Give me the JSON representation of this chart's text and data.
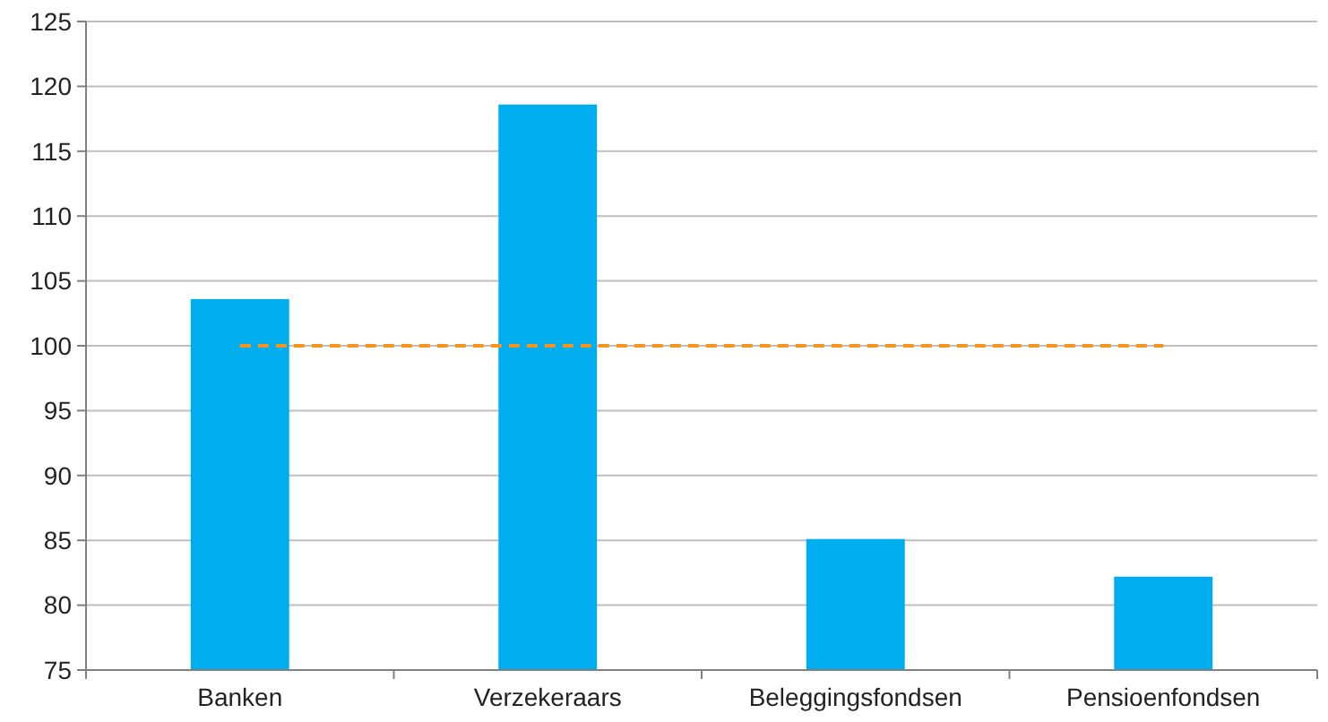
{
  "chart_data": {
    "type": "bar",
    "categories": [
      "Banken",
      "Verzekeraars",
      "Beleggingsfondsen",
      "Pensioenfondsen"
    ],
    "series": [
      {
        "color": "#00aeef",
        "values": [
          103.6,
          118.6,
          85.1,
          82.2
        ]
      },
      {
        "type": "line",
        "color": "#f7941d",
        "values": [
          100,
          100,
          100,
          100
        ],
        "line_style": "dashed",
        "marker": "none"
      }
    ],
    "ylim": [
      75,
      125
    ],
    "yticks": [
      75,
      80,
      85,
      90,
      95,
      100,
      105,
      110,
      115,
      120,
      125
    ],
    "grid": "y"
  }
}
